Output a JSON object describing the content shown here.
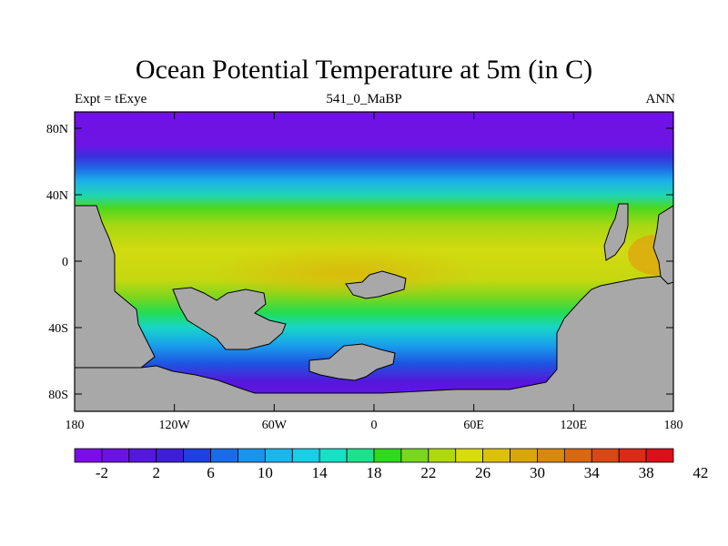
{
  "title": "Ocean Potential Temperature at 5m (in C)",
  "subtitle_left": "Expt = tExye",
  "subtitle_center": "541_0_MaBP",
  "subtitle_right": "ANN",
  "lat_ticks": [
    "80N",
    "40N",
    "0",
    "40S",
    "80S"
  ],
  "lon_ticks": [
    "180",
    "120W",
    "60W",
    "0",
    "60E",
    "120E",
    "180"
  ],
  "colorbar": {
    "levels": [
      "-2",
      "2",
      "6",
      "10",
      "14",
      "18",
      "22",
      "26",
      "30",
      "34",
      "38",
      "42"
    ],
    "colors": [
      "#7b0ee8",
      "#6a13e2",
      "#5418dc",
      "#3f1fd6",
      "#1f3fe0",
      "#1a6be8",
      "#1993ec",
      "#1cb5ee",
      "#19cfe6",
      "#17e0c4",
      "#1ee08d",
      "#2ed91e",
      "#7ad61e",
      "#b0d80e",
      "#d8dc0c",
      "#dcc10c",
      "#d8a70c",
      "#d8880e",
      "#d86811",
      "#d84814",
      "#da2a18",
      "#dc0f1c"
    ]
  },
  "colors": {
    "land": "#a8a8a8",
    "ocean_polar": "#7012e6"
  }
}
